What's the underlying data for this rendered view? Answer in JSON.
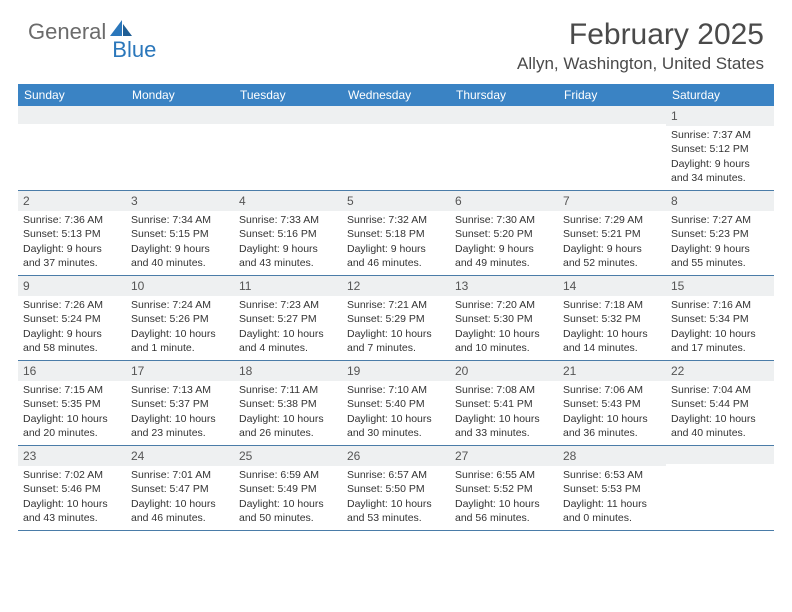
{
  "brand": {
    "general": "General",
    "blue": "Blue"
  },
  "title": {
    "month": "February 2025",
    "location": "Allyn, Washington, United States"
  },
  "colors": {
    "header_bg": "#3a83c4",
    "header_text": "#ffffff",
    "daynum_bg": "#eef0f1",
    "rule": "#4a7ca8",
    "body_text": "#333333",
    "title_text": "#4a4a4a",
    "logo_gray": "#6b6b6b",
    "logo_blue": "#2b77bb"
  },
  "weekdays": [
    "Sunday",
    "Monday",
    "Tuesday",
    "Wednesday",
    "Thursday",
    "Friday",
    "Saturday"
  ],
  "weeks": [
    [
      {
        "n": "",
        "sunrise": "",
        "sunset": "",
        "daylight": ""
      },
      {
        "n": "",
        "sunrise": "",
        "sunset": "",
        "daylight": ""
      },
      {
        "n": "",
        "sunrise": "",
        "sunset": "",
        "daylight": ""
      },
      {
        "n": "",
        "sunrise": "",
        "sunset": "",
        "daylight": ""
      },
      {
        "n": "",
        "sunrise": "",
        "sunset": "",
        "daylight": ""
      },
      {
        "n": "",
        "sunrise": "",
        "sunset": "",
        "daylight": ""
      },
      {
        "n": "1",
        "sunrise": "Sunrise: 7:37 AM",
        "sunset": "Sunset: 5:12 PM",
        "daylight": "Daylight: 9 hours and 34 minutes."
      }
    ],
    [
      {
        "n": "2",
        "sunrise": "Sunrise: 7:36 AM",
        "sunset": "Sunset: 5:13 PM",
        "daylight": "Daylight: 9 hours and 37 minutes."
      },
      {
        "n": "3",
        "sunrise": "Sunrise: 7:34 AM",
        "sunset": "Sunset: 5:15 PM",
        "daylight": "Daylight: 9 hours and 40 minutes."
      },
      {
        "n": "4",
        "sunrise": "Sunrise: 7:33 AM",
        "sunset": "Sunset: 5:16 PM",
        "daylight": "Daylight: 9 hours and 43 minutes."
      },
      {
        "n": "5",
        "sunrise": "Sunrise: 7:32 AM",
        "sunset": "Sunset: 5:18 PM",
        "daylight": "Daylight: 9 hours and 46 minutes."
      },
      {
        "n": "6",
        "sunrise": "Sunrise: 7:30 AM",
        "sunset": "Sunset: 5:20 PM",
        "daylight": "Daylight: 9 hours and 49 minutes."
      },
      {
        "n": "7",
        "sunrise": "Sunrise: 7:29 AM",
        "sunset": "Sunset: 5:21 PM",
        "daylight": "Daylight: 9 hours and 52 minutes."
      },
      {
        "n": "8",
        "sunrise": "Sunrise: 7:27 AM",
        "sunset": "Sunset: 5:23 PM",
        "daylight": "Daylight: 9 hours and 55 minutes."
      }
    ],
    [
      {
        "n": "9",
        "sunrise": "Sunrise: 7:26 AM",
        "sunset": "Sunset: 5:24 PM",
        "daylight": "Daylight: 9 hours and 58 minutes."
      },
      {
        "n": "10",
        "sunrise": "Sunrise: 7:24 AM",
        "sunset": "Sunset: 5:26 PM",
        "daylight": "Daylight: 10 hours and 1 minute."
      },
      {
        "n": "11",
        "sunrise": "Sunrise: 7:23 AM",
        "sunset": "Sunset: 5:27 PM",
        "daylight": "Daylight: 10 hours and 4 minutes."
      },
      {
        "n": "12",
        "sunrise": "Sunrise: 7:21 AM",
        "sunset": "Sunset: 5:29 PM",
        "daylight": "Daylight: 10 hours and 7 minutes."
      },
      {
        "n": "13",
        "sunrise": "Sunrise: 7:20 AM",
        "sunset": "Sunset: 5:30 PM",
        "daylight": "Daylight: 10 hours and 10 minutes."
      },
      {
        "n": "14",
        "sunrise": "Sunrise: 7:18 AM",
        "sunset": "Sunset: 5:32 PM",
        "daylight": "Daylight: 10 hours and 14 minutes."
      },
      {
        "n": "15",
        "sunrise": "Sunrise: 7:16 AM",
        "sunset": "Sunset: 5:34 PM",
        "daylight": "Daylight: 10 hours and 17 minutes."
      }
    ],
    [
      {
        "n": "16",
        "sunrise": "Sunrise: 7:15 AM",
        "sunset": "Sunset: 5:35 PM",
        "daylight": "Daylight: 10 hours and 20 minutes."
      },
      {
        "n": "17",
        "sunrise": "Sunrise: 7:13 AM",
        "sunset": "Sunset: 5:37 PM",
        "daylight": "Daylight: 10 hours and 23 minutes."
      },
      {
        "n": "18",
        "sunrise": "Sunrise: 7:11 AM",
        "sunset": "Sunset: 5:38 PM",
        "daylight": "Daylight: 10 hours and 26 minutes."
      },
      {
        "n": "19",
        "sunrise": "Sunrise: 7:10 AM",
        "sunset": "Sunset: 5:40 PM",
        "daylight": "Daylight: 10 hours and 30 minutes."
      },
      {
        "n": "20",
        "sunrise": "Sunrise: 7:08 AM",
        "sunset": "Sunset: 5:41 PM",
        "daylight": "Daylight: 10 hours and 33 minutes."
      },
      {
        "n": "21",
        "sunrise": "Sunrise: 7:06 AM",
        "sunset": "Sunset: 5:43 PM",
        "daylight": "Daylight: 10 hours and 36 minutes."
      },
      {
        "n": "22",
        "sunrise": "Sunrise: 7:04 AM",
        "sunset": "Sunset: 5:44 PM",
        "daylight": "Daylight: 10 hours and 40 minutes."
      }
    ],
    [
      {
        "n": "23",
        "sunrise": "Sunrise: 7:02 AM",
        "sunset": "Sunset: 5:46 PM",
        "daylight": "Daylight: 10 hours and 43 minutes."
      },
      {
        "n": "24",
        "sunrise": "Sunrise: 7:01 AM",
        "sunset": "Sunset: 5:47 PM",
        "daylight": "Daylight: 10 hours and 46 minutes."
      },
      {
        "n": "25",
        "sunrise": "Sunrise: 6:59 AM",
        "sunset": "Sunset: 5:49 PM",
        "daylight": "Daylight: 10 hours and 50 minutes."
      },
      {
        "n": "26",
        "sunrise": "Sunrise: 6:57 AM",
        "sunset": "Sunset: 5:50 PM",
        "daylight": "Daylight: 10 hours and 53 minutes."
      },
      {
        "n": "27",
        "sunrise": "Sunrise: 6:55 AM",
        "sunset": "Sunset: 5:52 PM",
        "daylight": "Daylight: 10 hours and 56 minutes."
      },
      {
        "n": "28",
        "sunrise": "Sunrise: 6:53 AM",
        "sunset": "Sunset: 5:53 PM",
        "daylight": "Daylight: 11 hours and 0 minutes."
      },
      {
        "n": "",
        "sunrise": "",
        "sunset": "",
        "daylight": ""
      }
    ]
  ]
}
